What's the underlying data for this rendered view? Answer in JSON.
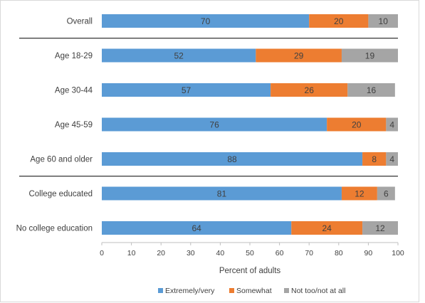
{
  "chart_data": {
    "type": "bar",
    "orientation": "horizontal",
    "stacked": true,
    "categories": [
      "Overall",
      "Age 18-29",
      "Age 30-44",
      "Age 45-59",
      "Age 60 and older",
      "College educated",
      "No college education"
    ],
    "series": [
      {
        "name": "Extremely/very",
        "color": "#5b9bd5",
        "values": [
          70,
          52,
          57,
          76,
          88,
          81,
          64
        ]
      },
      {
        "name": "Somewhat",
        "color": "#ed7d31",
        "values": [
          20,
          29,
          26,
          20,
          8,
          12,
          24
        ]
      },
      {
        "name": "Not too/not at all",
        "color": "#a5a5a5",
        "values": [
          10,
          19,
          16,
          4,
          4,
          6,
          12
        ]
      }
    ],
    "xlabel": "Percent of adults",
    "xlim": [
      0,
      100
    ],
    "xticks": [
      0,
      10,
      20,
      30,
      40,
      50,
      60,
      70,
      80,
      90,
      100
    ],
    "grid": false,
    "legend_position": "bottom",
    "group_separators_after": [
      "Overall",
      "Age 60 and older"
    ]
  }
}
